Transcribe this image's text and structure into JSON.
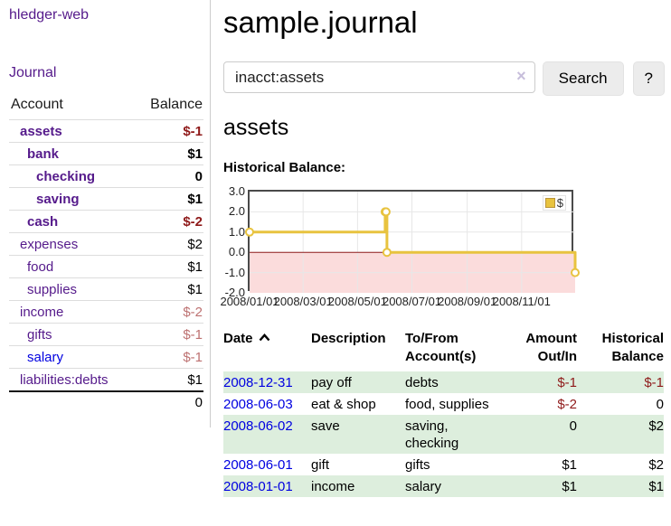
{
  "app": {
    "title": "hledger-web"
  },
  "sidebar": {
    "nav_journal": "Journal",
    "accounts": {
      "col_account": "Account",
      "col_balance": "Balance",
      "rows": [
        {
          "name": "assets",
          "balance": "$-1",
          "indent": 1,
          "bold": true,
          "neg": "strong"
        },
        {
          "name": "bank",
          "balance": "$1",
          "indent": 2,
          "bold": true
        },
        {
          "name": "checking",
          "balance": "0",
          "indent": 3,
          "bold": true
        },
        {
          "name": "saving",
          "balance": "$1",
          "indent": 3,
          "bold": true
        },
        {
          "name": "cash",
          "balance": "$-2",
          "indent": 2,
          "bold": true,
          "neg": "strong"
        },
        {
          "name": "expenses",
          "balance": "$2",
          "indent": 1
        },
        {
          "name": "food",
          "balance": "$1",
          "indent": 2
        },
        {
          "name": "supplies",
          "balance": "$1",
          "indent": 2
        },
        {
          "name": "income",
          "balance": "$-2",
          "indent": 1,
          "neg": "soft"
        },
        {
          "name": "gifts",
          "balance": "$-1",
          "indent": 2,
          "neg": "soft"
        },
        {
          "name": "salary",
          "balance": "$-1",
          "indent": 2,
          "neg": "soft",
          "link": "blue"
        },
        {
          "name": "liabilities:debts",
          "balance": "$1",
          "indent": 1
        }
      ],
      "total": "0"
    }
  },
  "main": {
    "title": "sample.journal",
    "search": {
      "value": "inacct:assets",
      "clear_icon": "×",
      "button": "Search",
      "help": "?"
    },
    "account_heading": "assets",
    "chart_heading": "Historical Balance:"
  },
  "chart_data": {
    "type": "line",
    "title": "Historical Balance",
    "step": true,
    "x_range": [
      "2008-01-01",
      "2008-12-31"
    ],
    "x_ticks": [
      {
        "date": "2008-01-01",
        "label": "2008/01/01"
      },
      {
        "date": "2008-03-01",
        "label": "2008/03/01"
      },
      {
        "date": "2008-05-01",
        "label": "2008/05/01"
      },
      {
        "date": "2008-07-01",
        "label": "2008/07/01"
      },
      {
        "date": "2008-09-01",
        "label": "2008/09/01"
      },
      {
        "date": "2008-11-01",
        "label": "2008/11/01"
      }
    ],
    "y_ticks": [
      "3.0",
      "2.0",
      "1.0",
      "0.0",
      "-1.0",
      "-2.0"
    ],
    "ylim": [
      -2,
      3
    ],
    "grid": true,
    "legend_position": "top-right",
    "legend": [
      {
        "label": "$",
        "color": "#e8c33f"
      }
    ],
    "series": [
      {
        "name": "$",
        "color": "#e8c33f",
        "points": [
          {
            "x": "2008-01-01",
            "y": 1
          },
          {
            "x": "2008-06-01",
            "y": 2
          },
          {
            "x": "2008-06-02",
            "y": 2
          },
          {
            "x": "2008-06-03",
            "y": 0
          },
          {
            "x": "2008-12-31",
            "y": -1
          }
        ]
      }
    ],
    "negative_region_fill": "#fbdcdc",
    "zero_line_color": "#8f1a1a"
  },
  "register": {
    "headers": {
      "date": "Date",
      "sort_icon": "chevron-up",
      "description": "Description",
      "tofrom_line1": "To/From",
      "tofrom_line2": "Account(s)",
      "amount_line1": "Amount",
      "amount_line2": "Out/In",
      "balance_line1": "Historical",
      "balance_line2": "Balance"
    },
    "rows": [
      {
        "date": "2008-12-31",
        "description": "pay off",
        "accounts": "debts",
        "amount": "$-1",
        "amount_neg": true,
        "balance": "$-1",
        "balance_neg": true
      },
      {
        "date": "2008-06-03",
        "description": "eat & shop",
        "accounts": "food, supplies",
        "amount": "$-2",
        "amount_neg": true,
        "balance": "0"
      },
      {
        "date": "2008-06-02",
        "description": "save",
        "accounts": "saving, checking",
        "amount": "0",
        "balance": "$2"
      },
      {
        "date": "2008-06-01",
        "description": "gift",
        "accounts": "gifts",
        "amount": "$1",
        "balance": "$2"
      },
      {
        "date": "2008-01-01",
        "description": "income",
        "accounts": "salary",
        "amount": "$1",
        "balance": "$1"
      }
    ]
  },
  "colors": {
    "link_purple": "#551a8b",
    "link_blue": "#0000e0",
    "negative_strong": "#8f1a1a",
    "negative_soft": "#bd7171",
    "row_green": "#ddeedd",
    "chart_line": "#e8c33f",
    "chart_negative_fill": "#fbdcdc",
    "chart_zero_line": "#8f1a1a"
  }
}
